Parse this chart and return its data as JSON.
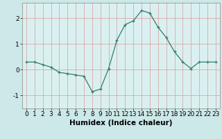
{
  "x": [
    0,
    1,
    2,
    3,
    4,
    5,
    6,
    7,
    8,
    9,
    10,
    11,
    12,
    13,
    14,
    15,
    16,
    17,
    18,
    19,
    20,
    21,
    22,
    23
  ],
  "y": [
    0.3,
    0.3,
    0.2,
    0.1,
    -0.1,
    -0.15,
    -0.2,
    -0.25,
    -0.85,
    -0.75,
    0.05,
    1.15,
    1.75,
    1.9,
    2.3,
    2.2,
    1.65,
    1.25,
    0.7,
    0.3,
    0.05,
    0.3,
    0.3,
    0.3
  ],
  "xlabel": "Humidex (Indice chaleur)",
  "line_color": "#2e7d6e",
  "marker": "+",
  "bg_color": "#cce8e8",
  "grid_color": "#d8a8a8",
  "plot_bg": "#daf0f0",
  "ylim": [
    -1.5,
    2.6
  ],
  "xlim": [
    -0.5,
    23.5
  ],
  "yticks": [
    -1,
    0,
    1,
    2
  ],
  "xticks": [
    0,
    1,
    2,
    3,
    4,
    5,
    6,
    7,
    8,
    9,
    10,
    11,
    12,
    13,
    14,
    15,
    16,
    17,
    18,
    19,
    20,
    21,
    22,
    23
  ],
  "xlabel_fontsize": 7.5,
  "tick_fontsize": 6.5
}
